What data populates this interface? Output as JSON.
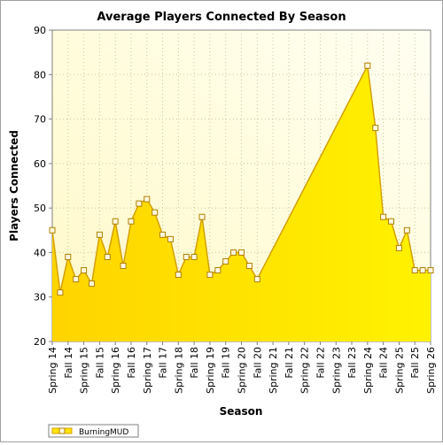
{
  "chart_data": {
    "type": "area",
    "title": "Average Players Connected By Season",
    "xlabel": "Season",
    "ylabel": "Players Connected",
    "ylim": [
      20,
      90
    ],
    "yticks": [
      "20",
      "30",
      "40",
      "50",
      "60",
      "70",
      "80",
      "90"
    ],
    "grid": true,
    "legend": "bottom-left",
    "colors": {
      "fill": "#ffe600",
      "line": "#d4a000",
      "marker_fill": "#fff8e0",
      "marker_stroke": "#b08000",
      "plot_bg": "#fffde0"
    },
    "x_labels": [
      "Spring 14",
      "Fall 14",
      "Spring 15",
      "Fall 15",
      "Spring 16",
      "Fall 16",
      "Spring 17",
      "Fall 17",
      "Spring 18",
      "Fall 18",
      "Spring 19",
      "Fall 19",
      "Spring 20",
      "Fall 20",
      "Spring 21",
      "Fall 21",
      "Spring 22",
      "Fall 22",
      "Spring 23",
      "Fall 23",
      "Spring 24",
      "Fall 24",
      "Spring 25",
      "Fall 25",
      "Spring 26"
    ],
    "series": [
      {
        "name": "BurningMUD",
        "points": [
          [
            0,
            45
          ],
          [
            0.5,
            31
          ],
          [
            1,
            39
          ],
          [
            1.5,
            34
          ],
          [
            2,
            36
          ],
          [
            2.5,
            33
          ],
          [
            3,
            44
          ],
          [
            3.5,
            39
          ],
          [
            4,
            47
          ],
          [
            4.5,
            37
          ],
          [
            5,
            47
          ],
          [
            5.5,
            51
          ],
          [
            6,
            52
          ],
          [
            6.5,
            49
          ],
          [
            7,
            44
          ],
          [
            7.5,
            43
          ],
          [
            8,
            35
          ],
          [
            8.5,
            39
          ],
          [
            9,
            39
          ],
          [
            9.5,
            48
          ],
          [
            10,
            35
          ],
          [
            10.5,
            36
          ],
          [
            11,
            38
          ],
          [
            11.5,
            40
          ],
          [
            12,
            40
          ],
          [
            12.5,
            37
          ],
          [
            13,
            34
          ],
          [
            20,
            82
          ],
          [
            20.5,
            68
          ],
          [
            21,
            48
          ],
          [
            21.5,
            47
          ],
          [
            22,
            41
          ],
          [
            22.5,
            45
          ],
          [
            23,
            36
          ],
          [
            23.5,
            36
          ],
          [
            24,
            36
          ]
        ]
      }
    ]
  }
}
